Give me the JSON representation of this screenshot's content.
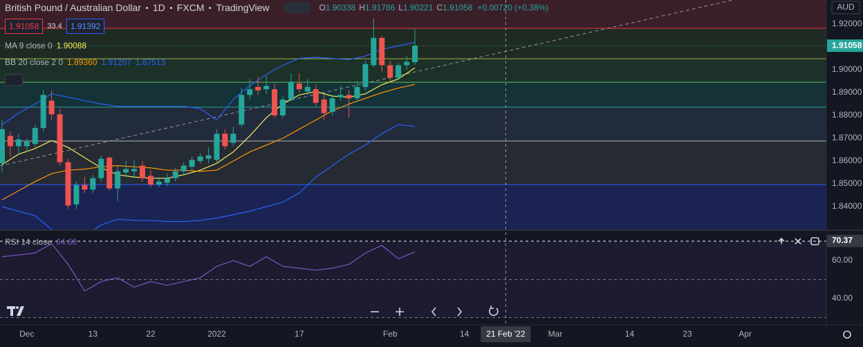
{
  "header": {
    "symbol": "British Pound / Australian Dollar",
    "interval": "1D",
    "source": "FXCM",
    "platform": "TradingView",
    "ohlc": [
      {
        "key": "O",
        "value": "1.90338"
      },
      {
        "key": "H",
        "value": "1.91786"
      },
      {
        "key": "L",
        "value": "1.90221"
      },
      {
        "key": "C",
        "value": "1.91058"
      }
    ],
    "change": "+0.00720 (+0.38%)"
  },
  "order_panel": {
    "sell": "1.91058",
    "spread": "33.4",
    "buy": "1.91392"
  },
  "chart_data": [
    {
      "type": "candlestick",
      "currency": "AUD",
      "x": [
        0,
        1,
        2,
        3,
        4,
        5,
        6,
        7,
        8,
        9,
        10,
        11,
        12,
        13,
        14,
        15,
        16,
        17,
        18,
        19,
        20,
        21,
        22,
        23,
        24,
        25,
        26,
        27,
        28,
        29,
        30,
        31,
        32,
        33,
        34,
        35,
        36,
        37,
        38,
        39,
        40,
        41,
        42,
        43,
        44,
        45,
        46,
        47,
        48,
        49,
        50
      ],
      "open": [
        1.859,
        1.871,
        1.8665,
        1.8665,
        1.8675,
        1.8745,
        1.8865,
        1.8805,
        1.8595,
        1.841,
        1.8495,
        1.8475,
        1.8525,
        1.8615,
        1.848,
        1.855,
        1.8555,
        1.858,
        1.8535,
        1.8497,
        1.8505,
        1.8525,
        1.8555,
        1.8575,
        1.86,
        1.861,
        1.8605,
        1.872,
        1.868,
        1.876,
        1.889,
        1.8925,
        1.8915,
        1.8915,
        1.88,
        1.887,
        1.894,
        1.8905,
        1.8915,
        1.887,
        1.8815,
        1.888,
        1.889,
        1.8875,
        1.8925,
        1.902,
        1.914,
        1.902,
        1.8965,
        1.902,
        1.90338
      ],
      "high": [
        1.878,
        1.873,
        1.872,
        1.87,
        1.876,
        1.891,
        1.891,
        1.883,
        1.861,
        1.851,
        1.853,
        1.854,
        1.8625,
        1.862,
        1.858,
        1.86,
        1.8605,
        1.86,
        1.856,
        1.853,
        1.8545,
        1.857,
        1.8595,
        1.862,
        1.8635,
        1.866,
        1.874,
        1.874,
        1.875,
        1.892,
        1.896,
        1.897,
        1.8975,
        1.894,
        1.8885,
        1.8985,
        1.8985,
        1.896,
        1.8935,
        1.889,
        1.889,
        1.893,
        1.891,
        1.895,
        1.904,
        1.9225,
        1.915,
        1.904,
        1.903,
        1.906,
        1.91786
      ],
      "low": [
        1.855,
        1.862,
        1.863,
        1.864,
        1.866,
        1.873,
        1.878,
        1.858,
        1.839,
        1.839,
        1.846,
        1.846,
        1.851,
        1.847,
        1.8425,
        1.853,
        1.853,
        1.851,
        1.8485,
        1.8485,
        1.849,
        1.851,
        1.854,
        1.856,
        1.859,
        1.859,
        1.859,
        1.865,
        1.8665,
        1.875,
        1.887,
        1.889,
        1.8895,
        1.879,
        1.879,
        1.886,
        1.89,
        1.889,
        1.884,
        1.878,
        1.88,
        1.8865,
        1.879,
        1.886,
        1.891,
        1.901,
        1.899,
        1.895,
        1.8955,
        1.9,
        1.90221
      ],
      "close": [
        1.874,
        1.8665,
        1.8695,
        1.8685,
        1.8745,
        1.889,
        1.8805,
        1.8595,
        1.8405,
        1.8495,
        1.8475,
        1.8525,
        1.861,
        1.848,
        1.8555,
        1.8565,
        1.8565,
        1.8525,
        1.8497,
        1.851,
        1.8525,
        1.8555,
        1.858,
        1.8605,
        1.862,
        1.8625,
        1.872,
        1.8665,
        1.872,
        1.889,
        1.8915,
        1.891,
        1.893,
        1.88,
        1.887,
        1.8948,
        1.8915,
        1.8925,
        1.8855,
        1.881,
        1.8875,
        1.889,
        1.8875,
        1.8925,
        1.9025,
        1.914,
        1.902,
        1.8965,
        1.902,
        1.9035,
        1.91058
      ],
      "up_color": "#26a69a",
      "down_color": "#ef5350",
      "xlim": [
        -0.25,
        99.83
      ],
      "ylim": [
        1.83,
        1.93061
      ],
      "yticks": [
        {
          "value": 1.84,
          "label": "1.84000"
        },
        {
          "value": 1.85,
          "label": "1.85000"
        },
        {
          "value": 1.86,
          "label": "1.86000"
        },
        {
          "value": 1.87,
          "label": "1.87000"
        },
        {
          "value": 1.88,
          "label": "1.88000"
        },
        {
          "value": 1.89,
          "label": "1.89000"
        },
        {
          "value": 1.9,
          "label": "1.90000"
        },
        {
          "value": 1.92,
          "label": "1.92000"
        }
      ],
      "xticks": [
        {
          "value": 3,
          "label": "Dec"
        },
        {
          "value": 11,
          "label": "13"
        },
        {
          "value": 18,
          "label": "22"
        },
        {
          "value": 26,
          "label": "2022"
        },
        {
          "value": 36,
          "label": "17"
        },
        {
          "value": 47,
          "label": "Feb"
        },
        {
          "value": 56,
          "label": "14"
        },
        {
          "value": 67,
          "label": "Mar"
        },
        {
          "value": 76,
          "label": "14"
        },
        {
          "value": 83,
          "label": "23"
        },
        {
          "value": 90,
          "label": "Apr"
        }
      ],
      "grid": false,
      "indicator_x": [
        0,
        2,
        4,
        6,
        8,
        10,
        12,
        14,
        16,
        18,
        20,
        22,
        24,
        26,
        28,
        30,
        32,
        34,
        36,
        38,
        40,
        42,
        44,
        46,
        48,
        50
      ],
      "indicators": [
        {
          "name": "MA 9 close 0",
          "lines": [
            {
              "color": "#f5eb5b",
              "last_label": "1.90088",
              "values": [
                1.8585,
                1.863,
                1.8655,
                1.869,
                1.866,
                1.8615,
                1.857,
                1.854,
                1.853,
                1.8525,
                1.8525,
                1.854,
                1.856,
                1.859,
                1.864,
                1.871,
                1.879,
                1.885,
                1.889,
                1.8905,
                1.8885,
                1.888,
                1.8895,
                1.8935,
                1.896,
                1.90088
              ]
            }
          ]
        },
        {
          "name": "BB 20 close 2 0",
          "lines": [
            {
              "color": "#ff9800",
              "last_label": "1.89360",
              "values": [
                1.843,
                1.847,
                1.851,
                1.8545,
                1.856,
                1.8565,
                1.8575,
                1.858,
                1.8575,
                1.857,
                1.856,
                1.856,
                1.8555,
                1.856,
                1.86,
                1.864,
                1.867,
                1.87,
                1.874,
                1.878,
                1.882,
                1.885,
                1.8875,
                1.89,
                1.892,
                1.8936
              ]
            },
            {
              "color": "#2962ff",
              "last_label": "1.91207",
              "values": [
                1.876,
                1.881,
                1.885,
                1.8895,
                1.888,
                1.8865,
                1.885,
                1.884,
                1.884,
                1.884,
                1.884,
                1.884,
                1.883,
                1.878,
                1.887,
                1.893,
                1.898,
                1.902,
                1.905,
                1.9055,
                1.905,
                1.9045,
                1.906,
                1.909,
                1.9105,
                1.91207
              ]
            },
            {
              "color": "#2962ff",
              "last_label": "1.87513",
              "values": [
                1.84,
                1.838,
                1.836,
                1.83,
                1.823,
                1.827,
                1.832,
                1.8345,
                1.834,
                1.834,
                1.8335,
                1.8335,
                1.834,
                1.835,
                1.8365,
                1.838,
                1.84,
                1.842,
                1.846,
                1.853,
                1.858,
                1.863,
                1.867,
                1.872,
                1.876,
                1.87513
              ]
            }
          ]
        }
      ],
      "levels": {
        "values": [
          1.9182,
          1.90485,
          1.89455,
          1.88364,
          1.86879,
          1.8497
        ],
        "colors": [
          "#f23645",
          "#9fb04a",
          "#5fbf6a",
          "#26a69a",
          "#b2b5be",
          "#2962ff"
        ],
        "zone_colors": [
          "#3a1f29",
          "#1f2b22",
          "#1c3128",
          "#153237",
          "#222b3b",
          "#262a33",
          "#1a2352"
        ]
      },
      "trendline": {
        "x": [
          -0.25,
          88.5
        ],
        "y": [
          1.8579,
          1.9306
        ]
      },
      "crosshair_x": {
        "value": 61,
        "label": "21 Feb '22"
      },
      "last_price": {
        "value": 1.91058,
        "label": "1.91058"
      }
    },
    {
      "type": "line",
      "name": "RSI 14 close",
      "value_label": "64.60",
      "color": "#7e57c2",
      "x": [
        0,
        2,
        4,
        6,
        8,
        10,
        12,
        14,
        16,
        18,
        20,
        22,
        24,
        26,
        28,
        30,
        32,
        34,
        36,
        38,
        40,
        42,
        44,
        46,
        48,
        50
      ],
      "values": [
        62,
        63,
        64,
        69,
        58,
        44,
        49,
        51,
        46,
        49,
        47,
        49,
        51,
        57,
        60,
        57,
        62,
        57,
        56,
        55,
        56,
        58,
        64,
        68,
        61,
        64.6
      ],
      "ylim": [
        26.18,
        75.64
      ],
      "yticks": [
        {
          "value": 40,
          "label": "40.00"
        },
        {
          "value": 60,
          "label": "60.00"
        }
      ],
      "bands": [
        70,
        50,
        30
      ],
      "crosshair_y": {
        "value": 70.37,
        "label": "70.37"
      }
    }
  ]
}
